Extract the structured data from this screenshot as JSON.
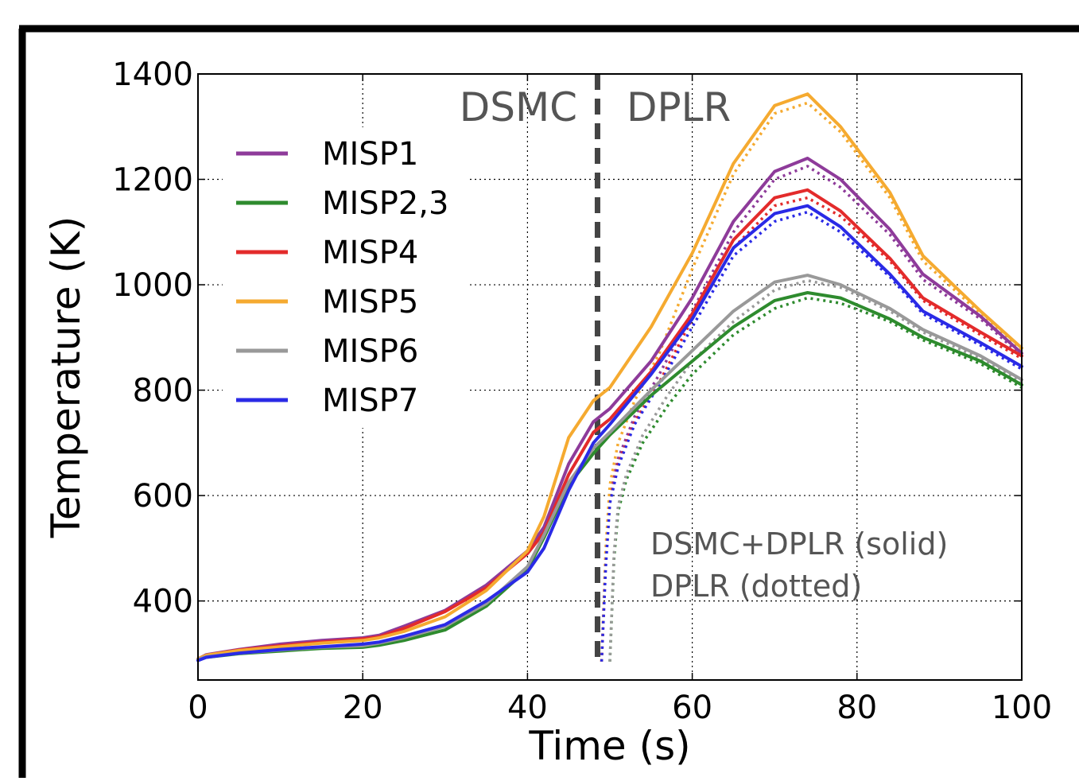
{
  "chart_data": {
    "type": "line",
    "xlabel": "Time (s)",
    "ylabel": "Temperature (K)",
    "xlim": [
      0,
      100
    ],
    "ylim": [
      250,
      1400
    ],
    "xticks": [
      0,
      20,
      40,
      60,
      80,
      100
    ],
    "yticks": [
      400,
      600,
      800,
      1000,
      1200,
      1400
    ],
    "grid": true,
    "legend_position": "upper-left",
    "region_divider": {
      "x": 48.5,
      "left_label": "DSMC",
      "right_label": "DPLR"
    },
    "annotation_lines": [
      "DSMC+DPLR (solid)",
      "DPLR (dotted)"
    ],
    "series": [
      {
        "name": "MISP1",
        "color": "#8e3b9a",
        "solid": [
          [
            0,
            290
          ],
          [
            1,
            298
          ],
          [
            5,
            308
          ],
          [
            10,
            318
          ],
          [
            15,
            325
          ],
          [
            20,
            330
          ],
          [
            22,
            335
          ],
          [
            25,
            352
          ],
          [
            30,
            382
          ],
          [
            35,
            430
          ],
          [
            40,
            495
          ],
          [
            42,
            540
          ],
          [
            45,
            660
          ],
          [
            48,
            740
          ],
          [
            50,
            765
          ],
          [
            55,
            855
          ],
          [
            60,
            975
          ],
          [
            65,
            1120
          ],
          [
            70,
            1215
          ],
          [
            74,
            1240
          ],
          [
            78,
            1200
          ],
          [
            84,
            1105
          ],
          [
            88,
            1020
          ],
          [
            95,
            940
          ],
          [
            100,
            870
          ]
        ],
        "dotted": [
          [
            49,
            285
          ],
          [
            49.5,
            480
          ],
          [
            50,
            600
          ],
          [
            51,
            670
          ],
          [
            53,
            750
          ],
          [
            56,
            830
          ],
          [
            60,
            950
          ],
          [
            65,
            1100
          ],
          [
            70,
            1200
          ],
          [
            74,
            1225
          ],
          [
            78,
            1185
          ],
          [
            84,
            1095
          ],
          [
            88,
            1010
          ],
          [
            95,
            935
          ],
          [
            100,
            865
          ]
        ]
      },
      {
        "name": "MISP2,3",
        "color": "#2e8b2e",
        "solid": [
          [
            0,
            288
          ],
          [
            1,
            293
          ],
          [
            5,
            300
          ],
          [
            10,
            305
          ],
          [
            15,
            310
          ],
          [
            20,
            312
          ],
          [
            22,
            316
          ],
          [
            25,
            325
          ],
          [
            30,
            345
          ],
          [
            35,
            390
          ],
          [
            40,
            460
          ],
          [
            42,
            520
          ],
          [
            45,
            620
          ],
          [
            48,
            680
          ],
          [
            50,
            715
          ],
          [
            55,
            790
          ],
          [
            60,
            855
          ],
          [
            65,
            920
          ],
          [
            70,
            970
          ],
          [
            74,
            985
          ],
          [
            78,
            975
          ],
          [
            84,
            935
          ],
          [
            88,
            900
          ],
          [
            95,
            855
          ],
          [
            100,
            810
          ]
        ],
        "dotted": [
          [
            50,
            285
          ],
          [
            50.5,
            480
          ],
          [
            51,
            570
          ],
          [
            52,
            630
          ],
          [
            54,
            700
          ],
          [
            57,
            770
          ],
          [
            60,
            830
          ],
          [
            65,
            905
          ],
          [
            70,
            955
          ],
          [
            74,
            975
          ],
          [
            78,
            965
          ],
          [
            84,
            930
          ],
          [
            88,
            895
          ],
          [
            95,
            850
          ],
          [
            100,
            805
          ]
        ]
      },
      {
        "name": "MISP4",
        "color": "#e32b2b",
        "solid": [
          [
            0,
            290
          ],
          [
            1,
            297
          ],
          [
            5,
            307
          ],
          [
            10,
            315
          ],
          [
            15,
            322
          ],
          [
            20,
            328
          ],
          [
            22,
            332
          ],
          [
            25,
            348
          ],
          [
            30,
            380
          ],
          [
            35,
            425
          ],
          [
            40,
            490
          ],
          [
            42,
            530
          ],
          [
            45,
            640
          ],
          [
            48,
            720
          ],
          [
            50,
            745
          ],
          [
            55,
            835
          ],
          [
            60,
            945
          ],
          [
            65,
            1085
          ],
          [
            70,
            1165
          ],
          [
            74,
            1180
          ],
          [
            78,
            1140
          ],
          [
            84,
            1050
          ],
          [
            88,
            975
          ],
          [
            95,
            910
          ],
          [
            100,
            865
          ]
        ],
        "dotted": [
          [
            49,
            285
          ],
          [
            49.5,
            470
          ],
          [
            50,
            590
          ],
          [
            51,
            660
          ],
          [
            53,
            740
          ],
          [
            56,
            815
          ],
          [
            60,
            935
          ],
          [
            65,
            1070
          ],
          [
            70,
            1150
          ],
          [
            74,
            1165
          ],
          [
            78,
            1130
          ],
          [
            84,
            1045
          ],
          [
            88,
            970
          ],
          [
            95,
            905
          ],
          [
            100,
            860
          ]
        ]
      },
      {
        "name": "MISP5",
        "color": "#f5aa30",
        "solid": [
          [
            0,
            290
          ],
          [
            1,
            297
          ],
          [
            5,
            306
          ],
          [
            10,
            313
          ],
          [
            15,
            320
          ],
          [
            20,
            325
          ],
          [
            22,
            330
          ],
          [
            25,
            342
          ],
          [
            30,
            370
          ],
          [
            35,
            420
          ],
          [
            40,
            495
          ],
          [
            42,
            560
          ],
          [
            45,
            710
          ],
          [
            48,
            780
          ],
          [
            50,
            805
          ],
          [
            55,
            920
          ],
          [
            60,
            1060
          ],
          [
            65,
            1230
          ],
          [
            70,
            1340
          ],
          [
            74,
            1362
          ],
          [
            78,
            1300
          ],
          [
            84,
            1175
          ],
          [
            88,
            1055
          ],
          [
            95,
            950
          ],
          [
            100,
            880
          ]
        ],
        "dotted": [
          [
            49,
            285
          ],
          [
            49.5,
            500
          ],
          [
            50,
            620
          ],
          [
            51,
            700
          ],
          [
            53,
            780
          ],
          [
            56,
            870
          ],
          [
            60,
            1030
          ],
          [
            65,
            1210
          ],
          [
            70,
            1325
          ],
          [
            74,
            1345
          ],
          [
            78,
            1290
          ],
          [
            84,
            1165
          ],
          [
            88,
            1045
          ],
          [
            95,
            945
          ],
          [
            100,
            875
          ]
        ]
      },
      {
        "name": "MISP6",
        "color": "#999999",
        "solid": [
          [
            0,
            289
          ],
          [
            1,
            294
          ],
          [
            5,
            301
          ],
          [
            10,
            307
          ],
          [
            15,
            312
          ],
          [
            20,
            315
          ],
          [
            22,
            320
          ],
          [
            25,
            330
          ],
          [
            30,
            352
          ],
          [
            35,
            395
          ],
          [
            40,
            465
          ],
          [
            42,
            525
          ],
          [
            45,
            625
          ],
          [
            48,
            690
          ],
          [
            50,
            720
          ],
          [
            55,
            800
          ],
          [
            60,
            875
          ],
          [
            65,
            950
          ],
          [
            70,
            1005
          ],
          [
            74,
            1018
          ],
          [
            78,
            1000
          ],
          [
            84,
            955
          ],
          [
            88,
            915
          ],
          [
            95,
            865
          ],
          [
            100,
            820
          ]
        ],
        "dotted": [
          [
            50,
            285
          ],
          [
            50.5,
            490
          ],
          [
            51,
            580
          ],
          [
            52,
            640
          ],
          [
            54,
            715
          ],
          [
            57,
            790
          ],
          [
            60,
            855
          ],
          [
            65,
            930
          ],
          [
            70,
            990
          ],
          [
            74,
            1008
          ],
          [
            78,
            995
          ],
          [
            84,
            950
          ],
          [
            88,
            910
          ],
          [
            95,
            860
          ],
          [
            100,
            815
          ]
        ]
      },
      {
        "name": "MISP7",
        "color": "#2a2ae6",
        "solid": [
          [
            0,
            287
          ],
          [
            1,
            293
          ],
          [
            5,
            301
          ],
          [
            10,
            308
          ],
          [
            15,
            313
          ],
          [
            20,
            318
          ],
          [
            22,
            322
          ],
          [
            25,
            333
          ],
          [
            30,
            355
          ],
          [
            35,
            400
          ],
          [
            40,
            455
          ],
          [
            42,
            500
          ],
          [
            45,
            610
          ],
          [
            48,
            700
          ],
          [
            50,
            735
          ],
          [
            55,
            830
          ],
          [
            60,
            935
          ],
          [
            65,
            1070
          ],
          [
            70,
            1135
          ],
          [
            74,
            1150
          ],
          [
            78,
            1110
          ],
          [
            84,
            1020
          ],
          [
            88,
            950
          ],
          [
            95,
            890
          ],
          [
            100,
            845
          ]
        ],
        "dotted": [
          [
            49,
            285
          ],
          [
            49.5,
            465
          ],
          [
            50,
            585
          ],
          [
            51,
            655
          ],
          [
            53,
            735
          ],
          [
            56,
            810
          ],
          [
            60,
            920
          ],
          [
            65,
            1055
          ],
          [
            70,
            1120
          ],
          [
            74,
            1138
          ],
          [
            78,
            1100
          ],
          [
            84,
            1015
          ],
          [
            88,
            945
          ],
          [
            95,
            885
          ],
          [
            100,
            840
          ]
        ]
      }
    ]
  }
}
